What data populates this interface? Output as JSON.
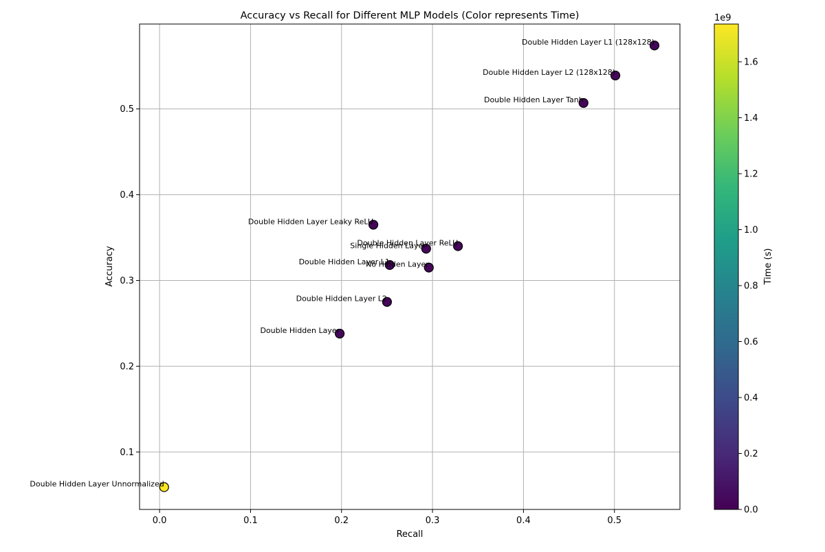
{
  "chart_data": {
    "type": "scatter",
    "title": "Accuracy vs Recall for Different MLP Models (Color represents Time)",
    "xlabel": "Recall",
    "ylabel": "Accuracy",
    "xlim": [
      -0.022,
      0.572
    ],
    "ylim": [
      0.033,
      0.599
    ],
    "xticks": [
      0.0,
      0.1,
      0.2,
      0.3,
      0.4,
      0.5
    ],
    "xtick_labels": [
      "0.0",
      "0.1",
      "0.2",
      "0.3",
      "0.4",
      "0.5"
    ],
    "yticks": [
      0.1,
      0.2,
      0.3,
      0.4,
      0.5
    ],
    "ytick_labels": [
      "0.1",
      "0.2",
      "0.3",
      "0.4",
      "0.5"
    ],
    "grid": true,
    "points": [
      {
        "label": "Double Hidden Layer L1 (128x128)",
        "x": 0.544,
        "y": 0.574,
        "time": 0.03
      },
      {
        "label": "Double Hidden Layer L2 (128x128)",
        "x": 0.501,
        "y": 0.539,
        "time": 0.03
      },
      {
        "label": "Double Hidden Layer Tanh",
        "x": 0.466,
        "y": 0.507,
        "time": 0.03
      },
      {
        "label": "Double Hidden Layer Leaky ReLU",
        "x": 0.235,
        "y": 0.365,
        "time": 0.03
      },
      {
        "label": "Double Hidden Layer ReLU",
        "x": 0.328,
        "y": 0.34,
        "time": 0.03
      },
      {
        "label": "Single Hidden Layer",
        "x": 0.293,
        "y": 0.337,
        "time": 0.03
      },
      {
        "label": "Double Hidden Layer L1",
        "x": 0.253,
        "y": 0.318,
        "time": 0.03
      },
      {
        "label": "No Hidden Layer",
        "x": 0.296,
        "y": 0.315,
        "time": 0.03
      },
      {
        "label": "Double Hidden Layer L2",
        "x": 0.25,
        "y": 0.275,
        "time": 0.03
      },
      {
        "label": "Double Hidden Layer",
        "x": 0.198,
        "y": 0.238,
        "time": 0.03
      },
      {
        "label": "Double Hidden Layer Unnormalized",
        "x": 0.005,
        "y": 0.059,
        "time": 1.73
      }
    ],
    "colorbar": {
      "label": "Time (s)",
      "colormap": "viridis",
      "range": [
        0.0,
        1.735
      ],
      "ticks": [
        0.0,
        0.2,
        0.4,
        0.6,
        0.8,
        1.0,
        1.2,
        1.4,
        1.6
      ],
      "tick_labels": [
        "0.0",
        "0.2",
        "0.4",
        "0.6",
        "0.8",
        "1.0",
        "1.2",
        "1.4",
        "1.6"
      ],
      "offset_label": "1e9"
    },
    "colors": {
      "marker_edge": "#000000",
      "grid": "#b0b0b0",
      "viridis_stops": [
        "#440154",
        "#482878",
        "#3e4989",
        "#31688e",
        "#26828e",
        "#1f9e89",
        "#35b779",
        "#6ece58",
        "#b5de2b",
        "#fde725"
      ]
    }
  }
}
